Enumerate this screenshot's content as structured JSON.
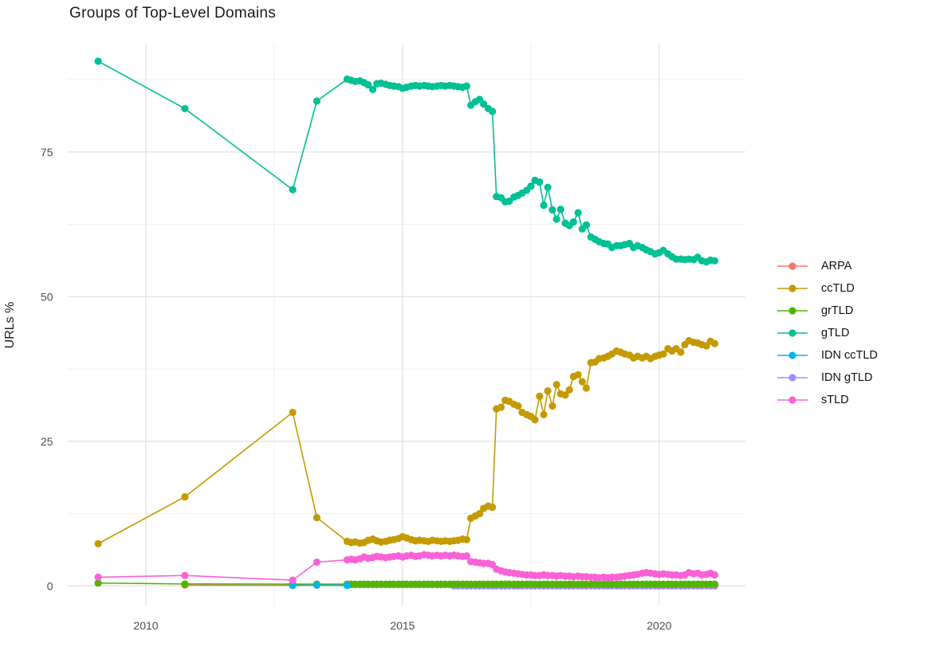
{
  "title": "Groups of Top-Level Domains",
  "chart_data": {
    "type": "line",
    "title": "Groups of Top-Level Domains",
    "xlabel": "",
    "ylabel": "URLs %",
    "xlim": [
      2008.47,
      2021.68
    ],
    "ylim": [
      -3.4,
      93.7
    ],
    "x_tick_values": [
      2010,
      2015,
      2020
    ],
    "x_tick_labels": [
      "2010",
      "2015",
      "2020"
    ],
    "x_minor_ticks": [
      2012.5,
      2017.5
    ],
    "y_tick_values": [
      0,
      25,
      50,
      75
    ],
    "y_tick_labels": [
      "0",
      "25",
      "50",
      "75"
    ],
    "y_minor_ticks": [
      12.5,
      37.5,
      62.5,
      87.5
    ],
    "grid": "major+minor",
    "legend_position": "right",
    "draw_order": [
      "ARPA",
      "IDN gTLD",
      "grTLD",
      "IDN ccTLD",
      "ccTLD",
      "gTLD",
      "sTLD"
    ],
    "dense_x": [
      2013.92,
      2014.0,
      2014.08,
      2014.17,
      2014.25,
      2014.33,
      2014.42,
      2014.5,
      2014.58,
      2014.67,
      2014.75,
      2014.83,
      2014.92,
      2015.0,
      2015.08,
      2015.17,
      2015.25,
      2015.33,
      2015.42,
      2015.5,
      2015.58,
      2015.67,
      2015.75,
      2015.83,
      2015.92,
      2016.0,
      2016.08,
      2016.17,
      2016.25,
      2016.33,
      2016.42,
      2016.5,
      2016.58,
      2016.67,
      2016.75,
      2016.83,
      2016.92,
      2017.0,
      2017.08,
      2017.17,
      2017.25,
      2017.33,
      2017.42,
      2017.5,
      2017.58,
      2017.67,
      2017.75,
      2017.83,
      2017.92,
      2018.0,
      2018.08,
      2018.17,
      2018.25,
      2018.33,
      2018.42,
      2018.5,
      2018.58,
      2018.67,
      2018.75,
      2018.83,
      2018.92,
      2019.0,
      2019.08,
      2019.17,
      2019.25,
      2019.33,
      2019.42,
      2019.5,
      2019.58,
      2019.67,
      2019.75,
      2019.83,
      2019.92,
      2020.0,
      2020.08,
      2020.17,
      2020.25,
      2020.33,
      2020.42,
      2020.5,
      2020.58,
      2020.67,
      2020.75,
      2020.83,
      2020.92,
      2021.0,
      2021.08
    ],
    "series": [
      {
        "name": "ARPA",
        "color": "#F8766D",
        "sparse": [
          [
            2010.76,
            0.12
          ],
          [
            2012.86,
            0.1
          ]
        ],
        "dense_y": [
          0.25,
          0.25,
          0.25,
          0.25,
          0.25,
          0.25,
          0.25,
          0.25,
          0.25,
          0.25,
          0.25,
          0.25,
          0.25,
          0.25,
          0.25,
          0.25,
          0.25,
          0.25,
          0.25,
          0.25,
          0.25,
          0.25,
          0.25,
          0.25,
          0.25,
          0.25,
          0.25,
          0.25,
          0.25,
          0.25,
          0.25,
          0.25,
          0.25,
          0.25,
          0.25,
          0.25,
          0.25,
          0.25,
          0.25,
          0.25,
          0.25,
          0.25,
          0.25,
          0.25,
          0.25,
          0.25,
          0.25,
          0.25,
          0.25,
          0.25,
          0.25,
          0.25,
          0.25,
          0.25,
          0.25,
          0.25,
          0.25,
          0.25,
          0.25,
          0.25,
          0.25,
          0.25,
          0.25,
          0.25,
          0.25,
          0.25,
          0.25,
          0.25,
          0.25,
          0.25,
          0.25,
          0.25,
          0.25,
          0.25,
          0.25,
          0.25,
          0.25,
          0.25,
          0.25,
          0.25,
          0.25,
          0.25,
          0.25,
          0.25,
          0.25,
          0.25,
          0.25
        ]
      },
      {
        "name": "ccTLD",
        "color": "#C49A00",
        "sparse": [
          [
            2009.07,
            7.3
          ],
          [
            2010.76,
            15.4
          ],
          [
            2012.86,
            30.0
          ],
          [
            2013.33,
            11.8
          ]
        ],
        "dense_y": [
          7.7,
          7.5,
          7.6,
          7.4,
          7.5,
          7.9,
          8.1,
          7.8,
          7.6,
          7.7,
          7.9,
          8.0,
          8.2,
          8.5,
          8.3,
          8.0,
          7.8,
          7.9,
          7.8,
          7.7,
          7.9,
          7.8,
          7.7,
          7.8,
          7.7,
          7.8,
          7.9,
          8.1,
          8.0,
          11.7,
          12.1,
          12.5,
          13.4,
          13.8,
          13.6,
          30.6,
          30.9,
          32.1,
          31.9,
          31.4,
          31.1,
          30.0,
          29.6,
          29.3,
          28.7,
          32.8,
          29.6,
          33.7,
          31.1,
          34.8,
          33.2,
          33.0,
          33.9,
          36.2,
          36.5,
          35.3,
          34.2,
          38.6,
          38.7,
          39.3,
          39.4,
          39.7,
          40.1,
          40.6,
          40.4,
          40.1,
          39.9,
          39.4,
          39.7,
          39.4,
          39.7,
          39.3,
          39.7,
          39.9,
          40.1,
          41.0,
          40.6,
          41.0,
          40.4,
          41.7,
          42.4,
          42.1,
          42.0,
          41.7,
          41.5,
          42.3,
          41.9
        ]
      },
      {
        "name": "grTLD",
        "color": "#53B400",
        "sparse": [
          [
            2009.07,
            0.5
          ],
          [
            2010.76,
            0.35
          ],
          [
            2012.86,
            0.3
          ],
          [
            2013.33,
            0.3
          ]
        ],
        "dense_y": [
          0.3,
          0.3,
          0.3,
          0.3,
          0.3,
          0.3,
          0.3,
          0.3,
          0.3,
          0.3,
          0.3,
          0.3,
          0.3,
          0.3,
          0.3,
          0.3,
          0.3,
          0.3,
          0.3,
          0.3,
          0.3,
          0.3,
          0.3,
          0.3,
          0.3,
          0.3,
          0.3,
          0.3,
          0.3,
          0.3,
          0.3,
          0.3,
          0.3,
          0.3,
          0.3,
          0.3,
          0.3,
          0.3,
          0.3,
          0.3,
          0.3,
          0.3,
          0.3,
          0.3,
          0.3,
          0.3,
          0.3,
          0.3,
          0.3,
          0.3,
          0.3,
          0.3,
          0.3,
          0.3,
          0.3,
          0.3,
          0.3,
          0.3,
          0.3,
          0.3,
          0.3,
          0.3,
          0.3,
          0.3,
          0.3,
          0.3,
          0.3,
          0.3,
          0.3,
          0.3,
          0.3,
          0.3,
          0.3,
          0.3,
          0.3,
          0.3,
          0.3,
          0.3,
          0.3,
          0.3,
          0.3,
          0.3,
          0.3,
          0.3,
          0.3,
          0.3,
          0.3
        ]
      },
      {
        "name": "gTLD",
        "color": "#00C094",
        "sparse": [
          [
            2009.07,
            90.7
          ],
          [
            2010.76,
            82.5
          ],
          [
            2012.86,
            68.5
          ],
          [
            2013.33,
            83.8
          ]
        ],
        "dense_y": [
          87.6,
          87.4,
          87.2,
          87.3,
          87.0,
          86.6,
          85.8,
          86.8,
          86.9,
          86.7,
          86.5,
          86.4,
          86.3,
          86.0,
          86.2,
          86.4,
          86.5,
          86.4,
          86.5,
          86.4,
          86.3,
          86.4,
          86.5,
          86.4,
          86.5,
          86.4,
          86.3,
          86.2,
          86.4,
          83.1,
          83.7,
          84.1,
          83.3,
          82.5,
          82.0,
          67.3,
          67.1,
          66.4,
          66.5,
          67.2,
          67.5,
          67.9,
          68.4,
          69.1,
          70.1,
          69.8,
          65.8,
          68.9,
          65.0,
          63.4,
          65.1,
          62.7,
          62.3,
          62.9,
          64.5,
          61.7,
          62.4,
          60.3,
          59.9,
          59.5,
          59.2,
          59.1,
          58.5,
          58.8,
          58.8,
          59.0,
          59.2,
          58.5,
          58.8,
          58.5,
          58.1,
          57.8,
          57.4,
          57.6,
          58.0,
          57.4,
          56.9,
          56.5,
          56.5,
          56.4,
          56.5,
          56.4,
          56.8,
          56.2,
          56.0,
          56.3,
          56.2
        ]
      },
      {
        "name": "IDN ccTLD",
        "color": "#00B6EB",
        "sparse": [
          [
            2012.86,
            0.1
          ],
          [
            2013.33,
            0.12
          ],
          [
            2013.92,
            0.1
          ]
        ],
        "dense_y": null
      },
      {
        "name": "IDN gTLD",
        "color": "#A58AFF",
        "sparse": [],
        "dense_y": [
          null,
          null,
          null,
          null,
          null,
          null,
          null,
          null,
          null,
          null,
          null,
          null,
          null,
          null,
          null,
          null,
          null,
          null,
          null,
          null,
          null,
          null,
          null,
          null,
          null,
          0.0,
          0.0,
          0.0,
          0.0,
          0.0,
          0.0,
          0.0,
          0.0,
          0.0,
          0.0,
          0.0,
          0.0,
          0.0,
          0.0,
          0.0,
          0.0,
          0.0,
          0.0,
          0.0,
          0.0,
          0.0,
          0.0,
          0.0,
          0.0,
          0.0,
          0.0,
          0.0,
          0.0,
          0.0,
          0.0,
          0.0,
          0.0,
          0.0,
          0.0,
          0.0,
          0.0,
          0.0,
          0.0,
          0.0,
          0.0,
          0.0,
          0.0,
          0.0,
          0.0,
          0.0,
          0.0,
          0.0,
          0.0,
          0.0,
          0.0,
          0.0,
          0.0,
          0.0,
          0.0,
          0.0,
          0.0,
          0.0,
          0.0,
          0.0,
          0.0,
          0.0,
          0.0
        ]
      },
      {
        "name": "sTLD",
        "color": "#FB61D7",
        "sparse": [
          [
            2009.07,
            1.5
          ],
          [
            2010.76,
            1.8
          ],
          [
            2012.86,
            1.0
          ],
          [
            2013.33,
            4.1
          ]
        ],
        "dense_y": [
          4.5,
          4.6,
          4.5,
          4.7,
          5.0,
          4.8,
          4.9,
          5.1,
          5.0,
          4.9,
          5.0,
          5.1,
          5.2,
          5.0,
          5.2,
          5.3,
          5.1,
          5.2,
          5.4,
          5.3,
          5.2,
          5.3,
          5.2,
          5.3,
          5.2,
          5.3,
          5.2,
          5.1,
          5.2,
          4.2,
          4.1,
          4.0,
          3.9,
          3.9,
          3.7,
          2.9,
          2.6,
          2.4,
          2.3,
          2.2,
          2.1,
          2.0,
          1.9,
          1.9,
          1.8,
          1.8,
          1.9,
          1.8,
          1.8,
          1.7,
          1.8,
          1.7,
          1.7,
          1.6,
          1.7,
          1.6,
          1.6,
          1.5,
          1.5,
          1.4,
          1.5,
          1.4,
          1.5,
          1.5,
          1.6,
          1.7,
          1.8,
          1.9,
          2.0,
          2.2,
          2.3,
          2.2,
          2.1,
          2.0,
          2.1,
          2.0,
          1.9,
          1.9,
          1.8,
          1.9,
          2.3,
          2.1,
          2.2,
          1.9,
          2.0,
          2.2,
          1.9
        ]
      }
    ],
    "style": {
      "grid_major_color": "#E3E3E3",
      "grid_minor_color": "#F0F0F0",
      "tick_label_color": "#4d4d4d",
      "point_radius": 4.6,
      "line_width": 1.6
    }
  }
}
